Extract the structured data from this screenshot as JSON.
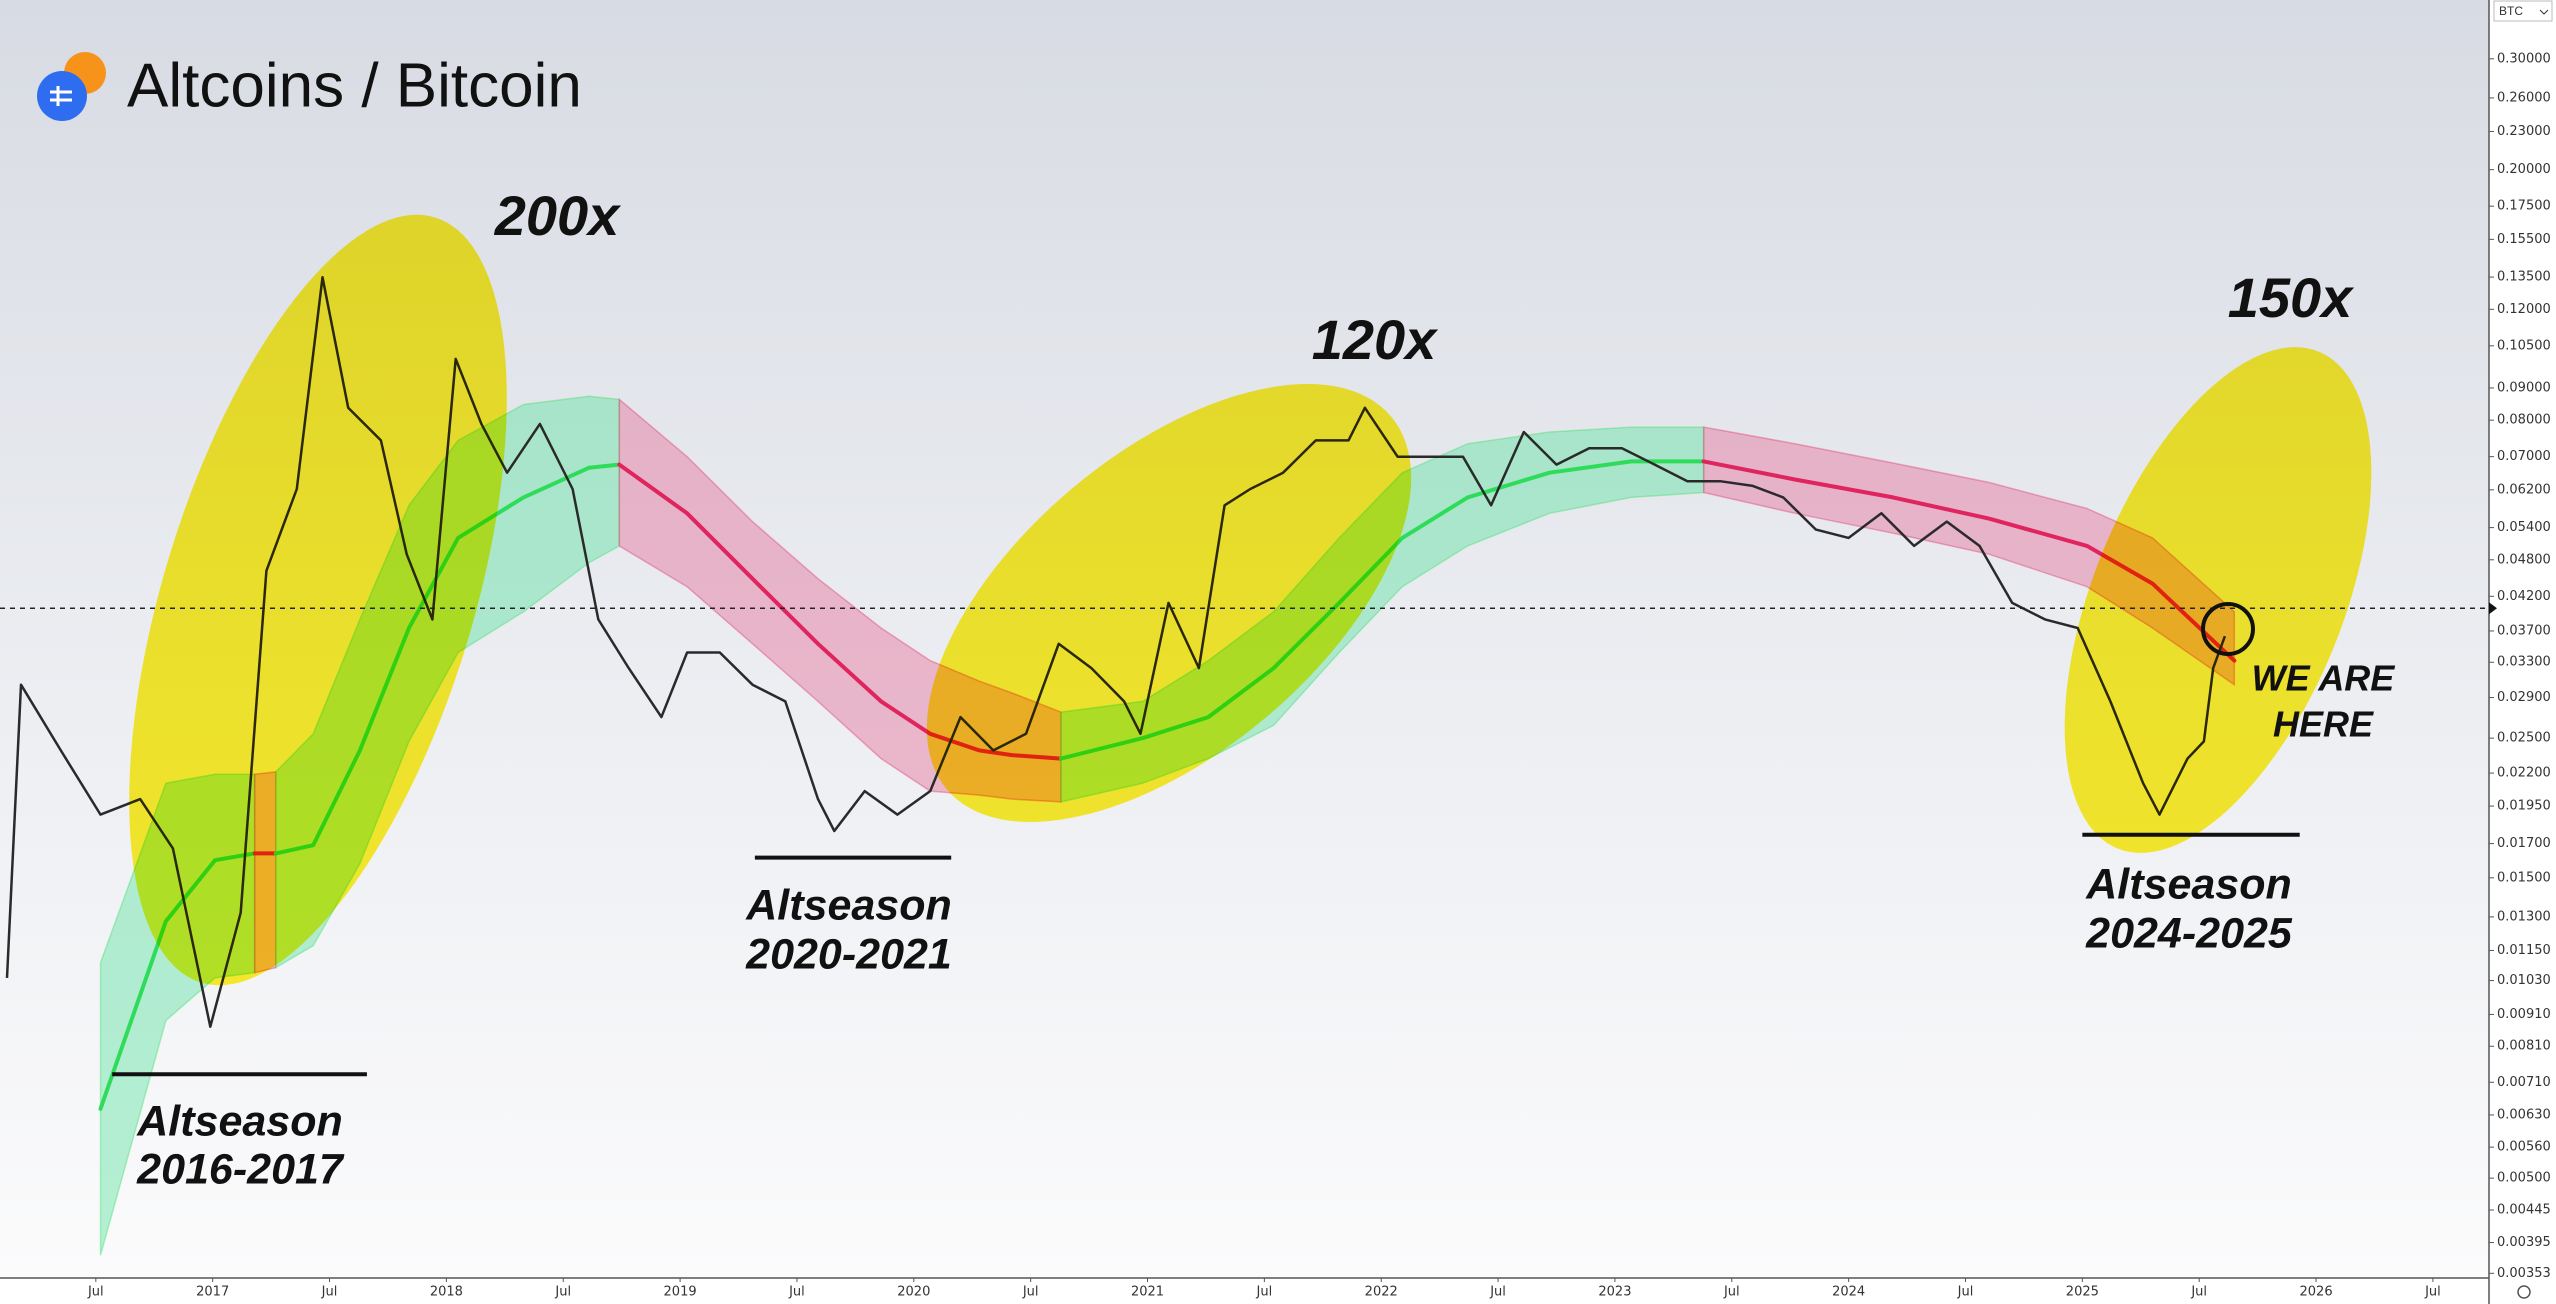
{
  "chart_data": {
    "type": "line",
    "title": "Altcoins / Bitcoin",
    "currency": "BTC",
    "log_scale": true,
    "grid": false,
    "color": "#2a2a2a",
    "xlim": [
      2016.09,
      2026.74
    ],
    "xticks": [
      {
        "value": 2016.5,
        "label": "Jul"
      },
      2017,
      {
        "value": 2017.5,
        "label": "Jul"
      },
      2018,
      {
        "value": 2018.5,
        "label": "Jul"
      },
      2019,
      {
        "value": 2019.5,
        "label": "Jul"
      },
      2020,
      {
        "value": 2020.5,
        "label": "Jul"
      },
      2021,
      {
        "value": 2021.5,
        "label": "Jul"
      },
      2022,
      {
        "value": 2022.5,
        "label": "Jul"
      },
      2023,
      {
        "value": 2023.5,
        "label": "Jul"
      },
      2024,
      {
        "value": 2024.5,
        "label": "Jul"
      },
      2025,
      {
        "value": 2025.5,
        "label": "Jul"
      },
      2026,
      {
        "value": 2026.5,
        "label": "Jul"
      }
    ],
    "ylim": [
      0.00347,
      0.372
    ],
    "yticks": [
      {
        "value": 0.3,
        "label": "0.30000"
      },
      {
        "value": 0.26,
        "label": "0.26000"
      },
      {
        "value": 0.23,
        "label": "0.23000"
      },
      {
        "value": 0.2,
        "label": "0.20000"
      },
      {
        "value": 0.175,
        "label": "0.17500"
      },
      {
        "value": 0.155,
        "label": "0.15500"
      },
      {
        "value": 0.135,
        "label": "0.13500"
      },
      {
        "value": 0.12,
        "label": "0.12000"
      },
      {
        "value": 0.105,
        "label": "0.10500"
      },
      {
        "value": 0.09,
        "label": "0.09000"
      },
      {
        "value": 0.08,
        "label": "0.08000"
      },
      {
        "value": 0.07,
        "label": "0.07000"
      },
      {
        "value": 0.062,
        "label": "0.06200"
      },
      {
        "value": 0.054,
        "label": "0.05400"
      },
      {
        "value": 0.048,
        "label": "0.04800"
      },
      {
        "value": 0.042,
        "label": "0.04200"
      },
      {
        "value": 0.037,
        "label": "0.03700"
      },
      {
        "value": 0.033,
        "label": "0.03300"
      },
      {
        "value": 0.029,
        "label": "0.02900"
      },
      {
        "value": 0.025,
        "label": "0.02500"
      },
      {
        "value": 0.022,
        "label": "0.02200"
      },
      {
        "value": 0.0195,
        "label": "0.01950"
      },
      {
        "value": 0.017,
        "label": "0.01700"
      },
      {
        "value": 0.015,
        "label": "0.01500"
      },
      {
        "value": 0.013,
        "label": "0.01300"
      },
      {
        "value": 0.0115,
        "label": "0.01150"
      },
      {
        "value": 0.0103,
        "label": "0.01030"
      },
      {
        "value": 0.0091,
        "label": "0.00910"
      },
      {
        "value": 0.0081,
        "label": "0.00810"
      },
      {
        "value": 0.0071,
        "label": "0.00710"
      },
      {
        "value": 0.0063,
        "label": "0.00630"
      },
      {
        "value": 0.0056,
        "label": "0.00560"
      },
      {
        "value": 0.005,
        "label": "0.00500"
      },
      {
        "value": 0.00445,
        "label": "0.00445"
      },
      {
        "value": 0.00395,
        "label": "0.00395"
      },
      {
        "value": 0.00353,
        "label": "0.00353"
      }
    ],
    "x": [
      2016.12,
      2016.18,
      2016.35,
      2016.52,
      2016.69,
      2016.83,
      2016.99,
      2017.12,
      2017.23,
      2017.36,
      2017.47,
      2017.58,
      2017.72,
      2017.83,
      2017.94,
      2018.04,
      2018.15,
      2018.26,
      2018.4,
      2018.54,
      2018.65,
      2018.78,
      2018.92,
      2019.03,
      2019.17,
      2019.31,
      2019.45,
      2019.59,
      2019.66,
      2019.79,
      2019.93,
      2020.07,
      2020.2,
      2020.34,
      2020.48,
      2020.62,
      2020.76,
      2020.9,
      2020.97,
      2021.09,
      2021.22,
      2021.33,
      2021.44,
      2021.58,
      2021.72,
      2021.86,
      2021.93,
      2022.07,
      2022.21,
      2022.35,
      2022.47,
      2022.61,
      2022.75,
      2022.89,
      2023.03,
      2023.17,
      2023.31,
      2023.45,
      2023.59,
      2023.72,
      2023.86,
      2024.0,
      2024.14,
      2024.28,
      2024.42,
      2024.56,
      2024.7,
      2024.84,
      2024.98,
      2025.12,
      2025.26,
      2025.33,
      2025.45,
      2025.52,
      2025.56,
      2025.61
    ],
    "values": [
      0.0104,
      0.0304,
      0.0239,
      0.0189,
      0.02,
      0.0167,
      0.0087,
      0.0132,
      0.0461,
      0.0622,
      0.1349,
      0.0837,
      0.0743,
      0.049,
      0.0386,
      0.1001,
      0.0789,
      0.066,
      0.0789,
      0.0622,
      0.0386,
      0.0323,
      0.027,
      0.0342,
      0.0342,
      0.0304,
      0.0286,
      0.02,
      0.0178,
      0.0206,
      0.0189,
      0.0206,
      0.027,
      0.0239,
      0.0254,
      0.0353,
      0.0323,
      0.0286,
      0.0254,
      0.041,
      0.0323,
      0.0586,
      0.0622,
      0.066,
      0.0743,
      0.0743,
      0.0837,
      0.07,
      0.07,
      0.07,
      0.0586,
      0.0766,
      0.068,
      0.0722,
      0.0722,
      0.068,
      0.064,
      0.064,
      0.0629,
      0.0603,
      0.0536,
      0.052,
      0.0569,
      0.0505,
      0.0552,
      0.0505,
      0.041,
      0.0386,
      0.0374,
      0.0286,
      0.0212,
      0.0189,
      0.0232,
      0.0247,
      0.0323,
      0.0363
    ],
    "bands": [
      {
        "color": "#5fe3a1",
        "line_color": "#2fdc5a",
        "x": [
          2016.52,
          2016.8,
          2017.01,
          2017.18
        ],
        "upper": [
          0.011,
          0.0212,
          0.0219,
          0.0219
        ],
        "middle": [
          0.00644,
          0.0128,
          0.016,
          0.0164
        ],
        "lower": [
          0.00377,
          0.0089,
          0.0104,
          0.0106
        ]
      },
      {
        "color": "#e5709a",
        "line_color": "#e0245e",
        "x": [
          2017.18,
          2017.27
        ],
        "upper": [
          0.0219,
          0.0221
        ],
        "middle": [
          0.0164,
          0.0164
        ],
        "lower": [
          0.0106,
          0.0108
        ]
      },
      {
        "color": "#5fe3a1",
        "line_color": "#2fdc5a",
        "x": [
          2017.27,
          2017.43,
          2017.63,
          2017.84,
          2018.05,
          2018.33,
          2018.61,
          2018.74
        ],
        "upper": [
          0.0221,
          0.0254,
          0.0386,
          0.0586,
          0.0743,
          0.0847,
          0.0873,
          0.0863
        ],
        "middle": [
          0.0164,
          0.0169,
          0.0239,
          0.0374,
          0.052,
          0.0603,
          0.0672,
          0.068
        ],
        "lower": [
          0.0108,
          0.0117,
          0.0158,
          0.0247,
          0.0342,
          0.0397,
          0.0475,
          0.0505
        ]
      },
      {
        "color": "#e5709a",
        "line_color": "#e0245e",
        "x": [
          2018.74,
          2019.03,
          2019.31,
          2019.59,
          2019.86,
          2020.07,
          2020.28,
          2020.42,
          2020.63
        ],
        "upper": [
          0.0863,
          0.07,
          0.0552,
          0.0448,
          0.0374,
          0.0332,
          0.0308,
          0.0295,
          0.0275
        ],
        "middle": [
          0.068,
          0.0569,
          0.0448,
          0.0353,
          0.0286,
          0.0254,
          0.0239,
          0.0235,
          0.0232
        ],
        "lower": [
          0.0505,
          0.0435,
          0.0353,
          0.0286,
          0.0232,
          0.0206,
          0.0203,
          0.02,
          0.0198
        ]
      },
      {
        "color": "#5fe3a1",
        "line_color": "#2fdc5a",
        "x": [
          2020.63,
          2020.98,
          2021.26,
          2021.54,
          2021.82,
          2022.09,
          2022.37,
          2022.72,
          2023.07,
          2023.38
        ],
        "upper": [
          0.0275,
          0.0286,
          0.0332,
          0.0397,
          0.052,
          0.066,
          0.0734,
          0.0766,
          0.078,
          0.078
        ],
        "middle": [
          0.0232,
          0.025,
          0.027,
          0.0323,
          0.041,
          0.052,
          0.0603,
          0.066,
          0.0688,
          0.0688
        ],
        "lower": [
          0.0198,
          0.0212,
          0.0232,
          0.0262,
          0.0342,
          0.0435,
          0.0505,
          0.0569,
          0.0603,
          0.0614
        ]
      },
      {
        "color": "#e5709a",
        "line_color": "#e0245e",
        "x": [
          2023.38,
          2023.77,
          2024.19,
          2024.6,
          2025.02,
          2025.3,
          2025.65
        ],
        "upper": [
          0.078,
          0.0734,
          0.0684,
          0.0637,
          0.0579,
          0.052,
          0.0397
        ],
        "middle": [
          0.0688,
          0.0644,
          0.0603,
          0.0558,
          0.0505,
          0.044,
          0.0332
        ],
        "lower": [
          0.0614,
          0.0569,
          0.0529,
          0.049,
          0.0435,
          0.0374,
          0.0304
        ]
      }
    ],
    "reference_line": 0.0402,
    "support_levels": [
      {
        "x": [
          2016.57,
          2017.66
        ],
        "value": 0.00731
      },
      {
        "x": [
          2019.32,
          2020.16
        ],
        "value": 0.01615
      },
      {
        "x": [
          2025.0,
          2025.93
        ],
        "value": 0.01756
      }
    ],
    "annotations": [
      {
        "lines": [
          "200x"
        ]
      },
      {
        "lines": [
          "120x"
        ]
      },
      {
        "lines": [
          "150x"
        ]
      },
      {
        "lines": [
          "Altseason",
          "2016-2017"
        ]
      },
      {
        "lines": [
          "Altseason",
          "2020-2021"
        ]
      },
      {
        "lines": [
          "Altseason",
          "2024-2025"
        ]
      },
      {
        "lines": [
          "WE ARE",
          "HERE"
        ]
      }
    ]
  }
}
